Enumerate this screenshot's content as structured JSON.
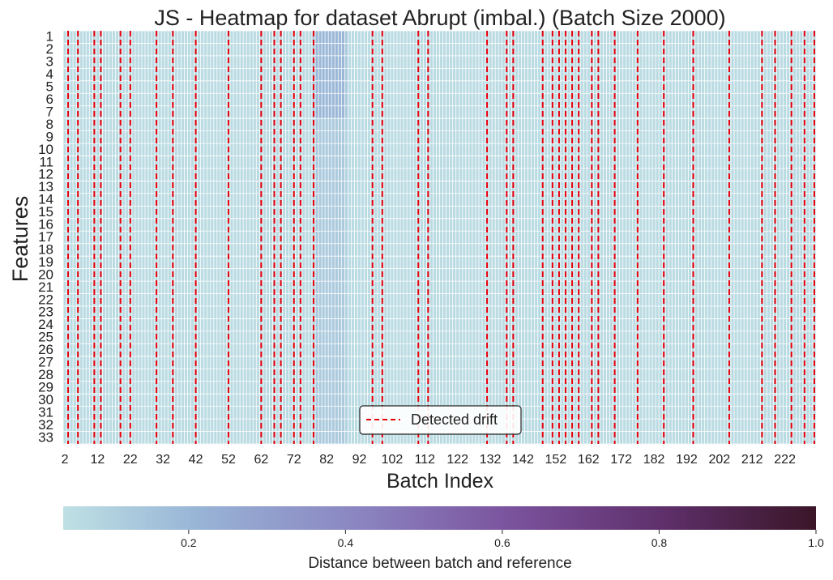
{
  "chart_data": {
    "type": "heatmap",
    "title": "JS - Heatmap for dataset Abrupt (imbal.) (Batch Size 2000)",
    "xlabel": "Batch Index",
    "ylabel": "Features",
    "x_range": [
      2,
      231
    ],
    "x_tick_labels": [
      "2",
      "12",
      "22",
      "32",
      "42",
      "52",
      "62",
      "72",
      "82",
      "92",
      "102",
      "112",
      "122",
      "132",
      "142",
      "152",
      "162",
      "172",
      "182",
      "192",
      "202",
      "212",
      "222"
    ],
    "features": [
      "1",
      "2",
      "3",
      "4",
      "5",
      "6",
      "7",
      "8",
      "9",
      "10",
      "11",
      "12",
      "13",
      "14",
      "15",
      "16",
      "17",
      "18",
      "19",
      "20",
      "21",
      "22",
      "23",
      "24",
      "25",
      "26",
      "27",
      "28",
      "29",
      "30",
      "31",
      "32",
      "33"
    ],
    "baseline_distance": 0.06,
    "elevated_region": {
      "batches": [
        78,
        88
      ],
      "peak_distance_features_1_7": 0.22,
      "distance_features_8_33": 0.14
    },
    "detected_drift_batches": [
      3,
      6,
      11,
      13,
      19,
      22,
      30,
      35,
      42,
      52,
      62,
      66,
      68,
      72,
      74,
      78,
      96,
      99,
      110,
      113,
      131,
      137,
      139,
      148,
      151,
      153,
      155,
      157,
      159,
      163,
      165,
      170,
      177,
      185,
      194,
      205,
      215,
      219,
      224,
      228,
      231
    ],
    "legend": {
      "label": "Detected drift",
      "position": "lower center"
    },
    "colorbar": {
      "label": "Distance between batch and reference",
      "range": [
        0.04,
        1.0
      ],
      "ticks": [
        "0.2",
        "0.4",
        "0.6",
        "0.8",
        "1.0"
      ],
      "colors": [
        "#bfe0e4",
        "#98b4d6",
        "#8a83c0",
        "#7a519c",
        "#5e2f6a",
        "#3a1628"
      ]
    },
    "drift_line_color": "#e8000b",
    "grid_line_color": "#ffffff"
  }
}
